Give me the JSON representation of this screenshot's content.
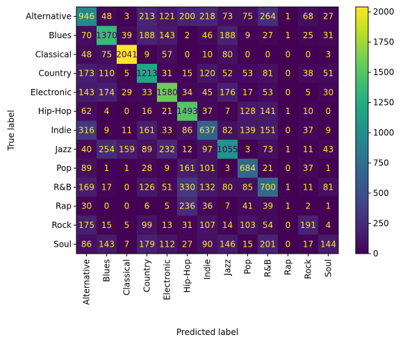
{
  "chart_data": {
    "type": "heatmap",
    "xlabel": "Predicted label",
    "ylabel": "True label",
    "x_categories": [
      "Alternative",
      "Blues",
      "Classical",
      "Country",
      "Electronic",
      "Hip-Hop",
      "Indie",
      "Jazz",
      "Pop",
      "R&B",
      "Rap",
      "Rock",
      "Soul"
    ],
    "y_categories": [
      "Alternative",
      "Blues",
      "Classical",
      "Country",
      "Electronic",
      "Hip-Hop",
      "Indie",
      "Jazz",
      "Pop",
      "R&B",
      "Rap",
      "Rock",
      "Soul"
    ],
    "values": [
      [
        946,
        48,
        3,
        213,
        121,
        200,
        218,
        73,
        75,
        264,
        1,
        68,
        27
      ],
      [
        70,
        1370,
        39,
        188,
        143,
        2,
        46,
        188,
        9,
        27,
        1,
        25,
        31
      ],
      [
        48,
        75,
        2041,
        9,
        57,
        0,
        10,
        80,
        0,
        0,
        0,
        0,
        3
      ],
      [
        173,
        110,
        5,
        1213,
        31,
        15,
        120,
        52,
        53,
        81,
        0,
        38,
        51
      ],
      [
        143,
        174,
        29,
        33,
        1580,
        34,
        45,
        176,
        17,
        53,
        0,
        5,
        30
      ],
      [
        62,
        4,
        0,
        16,
        21,
        1493,
        37,
        7,
        128,
        141,
        1,
        10,
        0
      ],
      [
        316,
        9,
        11,
        161,
        33,
        86,
        637,
        82,
        139,
        151,
        0,
        37,
        9
      ],
      [
        40,
        254,
        159,
        89,
        232,
        12,
        97,
        1055,
        3,
        73,
        1,
        11,
        43
      ],
      [
        89,
        1,
        1,
        28,
        9,
        161,
        101,
        3,
        684,
        21,
        0,
        37,
        1
      ],
      [
        169,
        17,
        0,
        126,
        51,
        330,
        132,
        80,
        85,
        700,
        1,
        11,
        81
      ],
      [
        30,
        0,
        0,
        6,
        5,
        236,
        36,
        7,
        41,
        39,
        1,
        2,
        1
      ],
      [
        175,
        15,
        5,
        99,
        13,
        31,
        107,
        14,
        103,
        54,
        0,
        191,
        4
      ],
      [
        86,
        143,
        7,
        179,
        112,
        27,
        90,
        146,
        15,
        201,
        0,
        17,
        144
      ]
    ],
    "colorbar": {
      "colormap": "viridis",
      "range": [
        0,
        2041
      ],
      "ticks": [
        0,
        250,
        500,
        750,
        1000,
        1250,
        1500,
        1750,
        2000
      ]
    },
    "text_color_light": "#fde725",
    "text_color_dark": "#440154"
  }
}
